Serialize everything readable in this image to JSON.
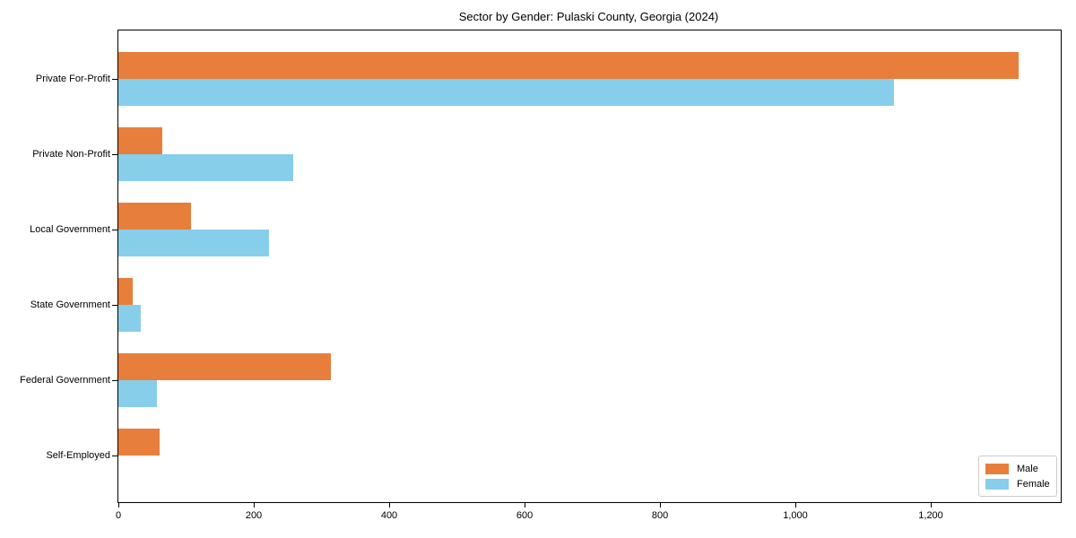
{
  "title": "Sector by Gender: Pulaski County, Georgia (2024)",
  "chart_data": {
    "type": "bar",
    "orientation": "horizontal",
    "title": "Sector by Gender: Pulaski County, Georgia (2024)",
    "xlabel": "",
    "ylabel": "",
    "categories": [
      "Private For-Profit",
      "Private Non-Profit",
      "Local Government",
      "State Government",
      "Federal Government",
      "Self-Employed"
    ],
    "series": [
      {
        "name": "Male",
        "color": "#E87E3C",
        "values": [
          1330,
          65,
          107,
          21,
          314,
          61
        ]
      },
      {
        "name": "Female",
        "color": "#87CEEB",
        "values": [
          1145,
          258,
          222,
          33,
          57,
          0
        ]
      }
    ],
    "xlim": [
      0,
      1392
    ],
    "x_ticks": [
      0,
      200,
      400,
      600,
      800,
      1000,
      1200
    ],
    "x_tick_labels": [
      "0",
      "200",
      "400",
      "600",
      "800",
      "1,000",
      "1,200"
    ],
    "grid": false,
    "legend_position": "lower right",
    "legend_labels": [
      "Male",
      "Female"
    ]
  }
}
